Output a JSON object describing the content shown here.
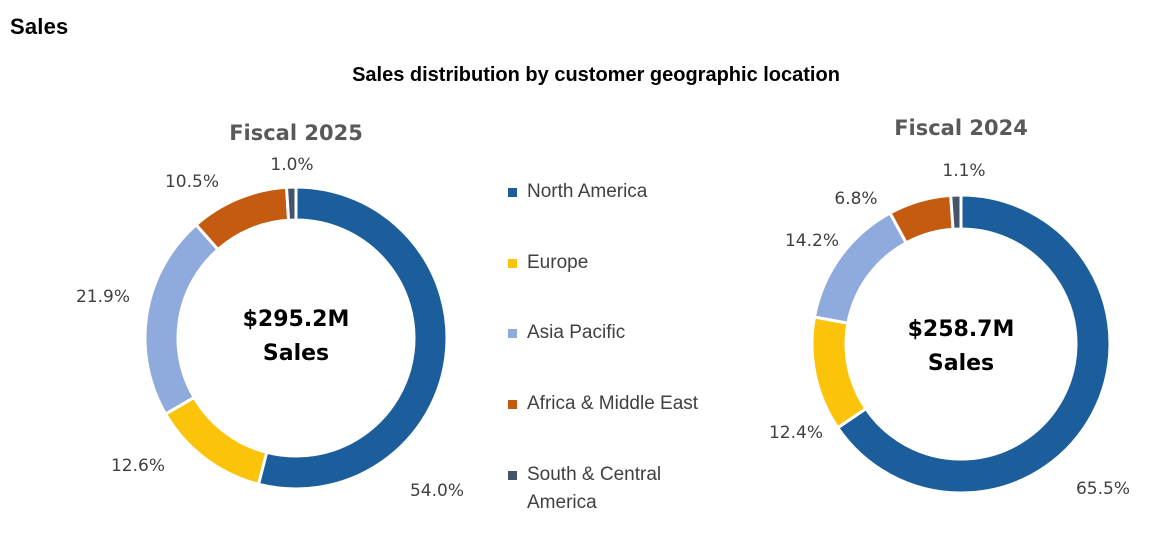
{
  "page": {
    "section_title": "Sales",
    "chart_title": "Sales distribution by customer geographic location"
  },
  "legend": {
    "items": [
      {
        "label": "North America",
        "color": "#1b5e9b"
      },
      {
        "label": "Europe",
        "color": "#fcc30b"
      },
      {
        "label": "Asia Pacific",
        "color": "#8faadc"
      },
      {
        "label": "Africa & Middle East",
        "color": "#c55a11"
      },
      {
        "label": "South & Central America",
        "color": "#44546a"
      }
    ]
  },
  "chart_data": [
    {
      "type": "pie",
      "variant": "donut",
      "title": "Fiscal 2025",
      "center_label": [
        "$295.2M",
        "Sales"
      ],
      "categories": [
        "North America",
        "Europe",
        "Asia Pacific",
        "Africa & Middle East",
        "South & Central America"
      ],
      "values": [
        54.0,
        12.6,
        21.9,
        10.5,
        1.0
      ],
      "value_labels": [
        "54.0%",
        "12.6%",
        "21.9%",
        "10.5%",
        "1.0%"
      ],
      "colors": [
        "#1b5e9b",
        "#fcc30b",
        "#8faadc",
        "#c55a11",
        "#44546a"
      ],
      "legend_position": "right"
    },
    {
      "type": "pie",
      "variant": "donut",
      "title": "Fiscal 2024",
      "center_label": [
        "$258.7M",
        "Sales"
      ],
      "categories": [
        "North America",
        "Europe",
        "Asia Pacific",
        "Africa & Middle East",
        "South & Central America"
      ],
      "values": [
        65.5,
        12.4,
        14.2,
        6.8,
        1.1
      ],
      "value_labels": [
        "65.5%",
        "12.4%",
        "14.2%",
        "6.8%",
        "1.1%"
      ],
      "colors": [
        "#1b5e9b",
        "#fcc30b",
        "#8faadc",
        "#c55a11",
        "#44546a"
      ],
      "legend_position": "left"
    }
  ]
}
